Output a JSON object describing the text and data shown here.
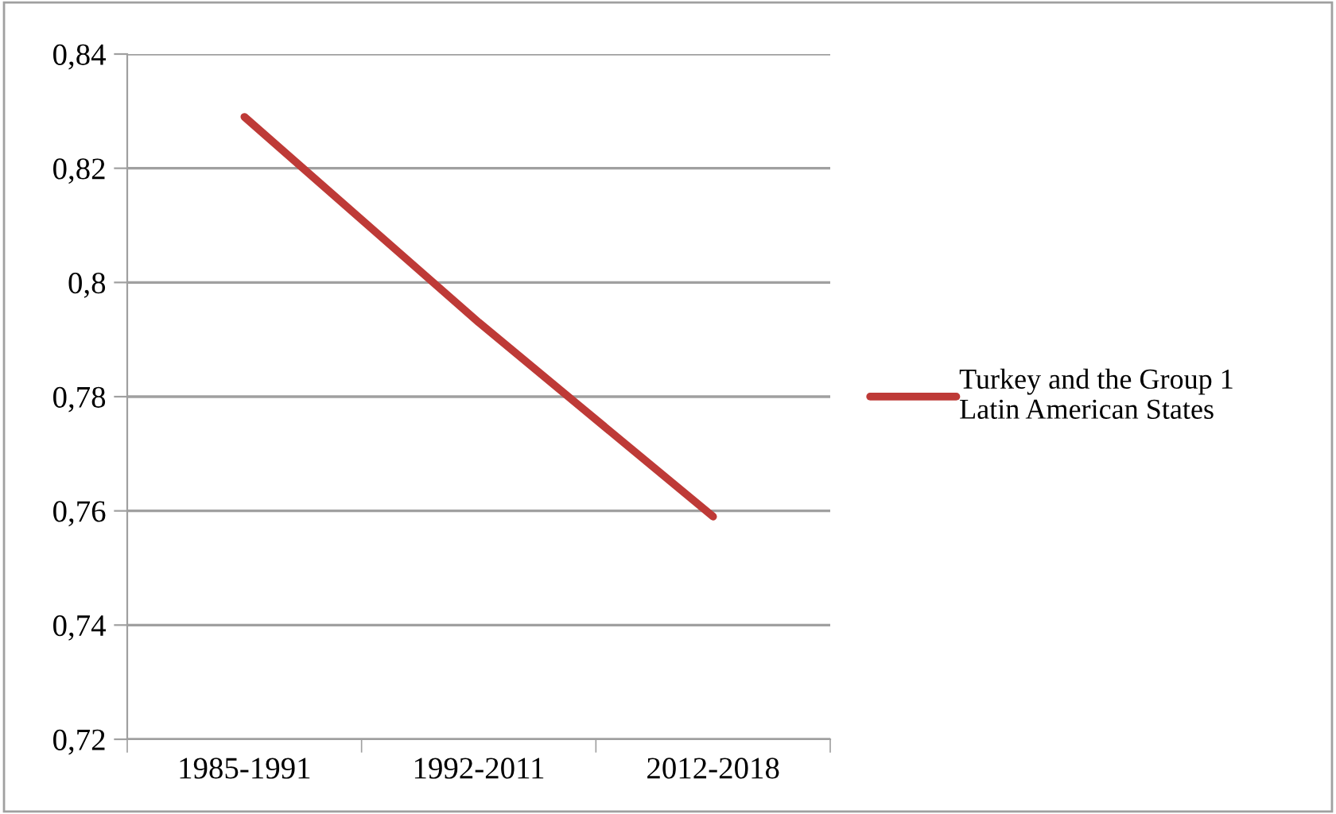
{
  "chart_data": {
    "type": "line",
    "categories": [
      "1985-1991",
      "1992-2011",
      "2012-2018"
    ],
    "series": [
      {
        "name": "Turkey and the Group 1\nLatin American States",
        "color": "#be3a37",
        "values": [
          0.829,
          0.793,
          0.759
        ]
      }
    ],
    "ylim": [
      0.72,
      0.84
    ],
    "yticks": [
      {
        "value": 0.72,
        "label": "0,72"
      },
      {
        "value": 0.74,
        "label": "0,74"
      },
      {
        "value": 0.76,
        "label": "0,76"
      },
      {
        "value": 0.78,
        "label": "0,78"
      },
      {
        "value": 0.8,
        "label": "0,8"
      },
      {
        "value": 0.82,
        "label": "0,82"
      },
      {
        "value": 0.84,
        "label": "0,84"
      }
    ],
    "grid": "y",
    "legend": "right",
    "marker": "none",
    "line_style": "solid"
  }
}
